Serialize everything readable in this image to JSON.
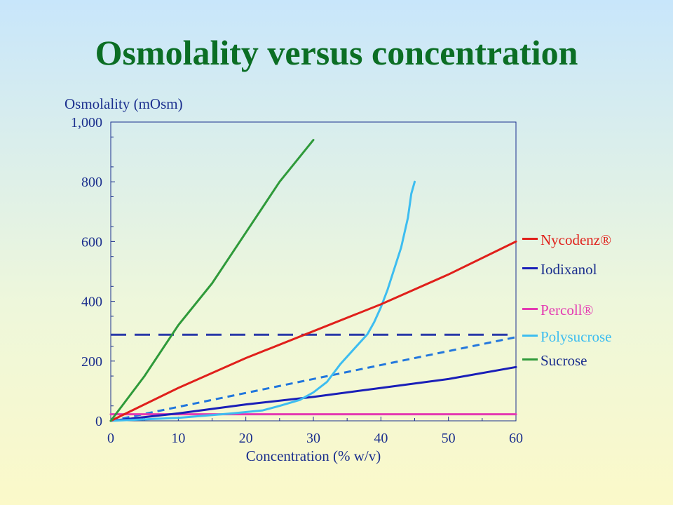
{
  "slide": {
    "title": "Osmolality versus concentration"
  },
  "colors": {
    "title": "#0b6e24",
    "axis_text": "#1b2f8e",
    "Nycodenz": "#e0201b",
    "Iodixanol": "#1a1fb8",
    "Percoll": "#e43ab2",
    "Polysucrose": "#3dbdf0",
    "Sucrose": "#2f9a3a",
    "iso_line": "#2a3aa8",
    "dashed_series": "#2277dd"
  },
  "chart_data": {
    "type": "line",
    "xlabel": "Concentration (% w/v)",
    "ylabel": "Osmolality (mOsm)",
    "xlim": [
      0,
      60
    ],
    "ylim": [
      0,
      1000
    ],
    "x_ticks": [
      "0",
      "10",
      "20",
      "30",
      "40",
      "50",
      "60"
    ],
    "y_ticks": [
      "0",
      "200",
      "400",
      "600",
      "800",
      "1,000"
    ],
    "grid": false,
    "legend_position": "right",
    "series": [
      {
        "name": "Nycodenz®",
        "color": "#e0201b",
        "style": "solid",
        "points": [
          [
            0,
            0
          ],
          [
            10,
            110
          ],
          [
            20,
            210
          ],
          [
            30,
            300
          ],
          [
            40,
            390
          ],
          [
            50,
            490
          ],
          [
            60,
            600
          ]
        ]
      },
      {
        "name": "Iodixanol",
        "color": "#1a1fb8",
        "style": "solid",
        "points": [
          [
            0,
            0
          ],
          [
            10,
            25
          ],
          [
            20,
            55
          ],
          [
            30,
            80
          ],
          [
            40,
            110
          ],
          [
            50,
            140
          ],
          [
            60,
            180
          ]
        ]
      },
      {
        "name": "Percoll®",
        "color": "#e43ab2",
        "style": "solid",
        "points": [
          [
            0,
            22
          ],
          [
            60,
            22
          ]
        ]
      },
      {
        "name": "Polysucrose",
        "color": "#3dbdf0",
        "style": "solid",
        "points": [
          [
            0,
            0
          ],
          [
            10,
            10
          ],
          [
            18,
            25
          ],
          [
            22.5,
            35
          ],
          [
            25,
            50
          ],
          [
            28,
            70
          ],
          [
            30,
            95
          ],
          [
            32,
            130
          ],
          [
            34,
            190
          ],
          [
            36,
            240
          ],
          [
            38,
            290
          ],
          [
            39,
            330
          ],
          [
            40,
            380
          ],
          [
            41,
            440
          ],
          [
            42,
            510
          ],
          [
            43,
            580
          ],
          [
            44,
            680
          ],
          [
            44.5,
            760
          ],
          [
            45,
            800
          ]
        ]
      },
      {
        "name": "Sucrose",
        "color": "#2f9a3a",
        "style": "solid",
        "points": [
          [
            0,
            0
          ],
          [
            5,
            150
          ],
          [
            10,
            320
          ],
          [
            15,
            460
          ],
          [
            20,
            630
          ],
          [
            25,
            800
          ],
          [
            30,
            940
          ]
        ]
      },
      {
        "name": "",
        "color": "#2277dd",
        "style": "dashed",
        "points": [
          [
            0,
            0
          ],
          [
            60,
            280
          ]
        ]
      },
      {
        "name": "",
        "color": "#2a3aa8",
        "style": "dashed-long",
        "points": [
          [
            0,
            288
          ],
          [
            60,
            288
          ]
        ]
      }
    ]
  },
  "legend": [
    {
      "label": "Nycodenz®",
      "color": "#e0201b"
    },
    {
      "label": "Iodixanol",
      "color": "#1a1fb8"
    },
    {
      "label": "Percoll®",
      "color": "#e43ab2"
    },
    {
      "label": "Polysucrose",
      "color": "#3dbdf0"
    },
    {
      "label": "Sucrose",
      "color": "#2f9a3a"
    }
  ]
}
